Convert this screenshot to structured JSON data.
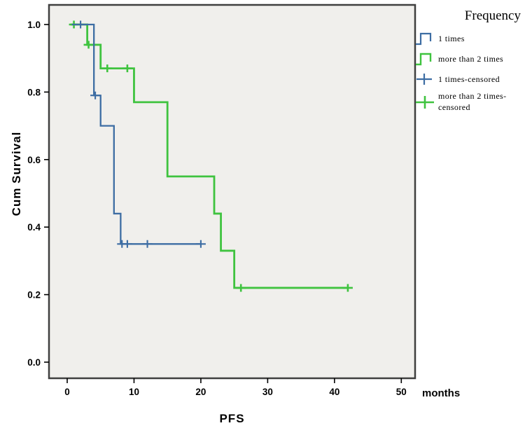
{
  "figure": {
    "background": "#ffffff",
    "plot_background": "#f0efec",
    "frame_color": "#3f3f3f"
  },
  "chart_data": {
    "type": "line",
    "subtype": "kaplan-meier-step-survival",
    "title": "",
    "xlabel": "PFS",
    "x_unit_label": "months",
    "ylabel": "Cum Survival",
    "xlim": [
      0,
      52
    ],
    "ylim": [
      0,
      1.04
    ],
    "x_ticks": [
      "0",
      "10",
      "20",
      "30",
      "40",
      "50"
    ],
    "y_ticks": [
      "0.0",
      "0.2",
      "0.4",
      "0.6",
      "0.8",
      "1.0"
    ],
    "grid": false,
    "legend": {
      "position": "right-outside",
      "title": "Frequency",
      "items": [
        {
          "label": "1 times",
          "symbol": "step-line",
          "color": "#3d6da3"
        },
        {
          "label": "more than 2 times",
          "symbol": "step-line",
          "color": "#3fc33f"
        },
        {
          "label": "1 times-censored",
          "symbol": "plus",
          "color": "#3d6da3"
        },
        {
          "label": "more than 2 times-censored",
          "symbol": "plus",
          "color": "#3fc33f"
        }
      ]
    },
    "series": [
      {
        "name": "more than 2 times",
        "color": "#3fc33f",
        "stroke_width": 2.8,
        "steps": [
          [
            0.5,
            1.0
          ],
          [
            3,
            1.0
          ],
          [
            3,
            0.94
          ],
          [
            5,
            0.94
          ],
          [
            5,
            0.87
          ],
          [
            10,
            0.87
          ],
          [
            10,
            0.77
          ],
          [
            15,
            0.77
          ],
          [
            15,
            0.55
          ],
          [
            22,
            0.55
          ],
          [
            22,
            0.44
          ],
          [
            23,
            0.44
          ],
          [
            23,
            0.33
          ],
          [
            25,
            0.33
          ],
          [
            25,
            0.22
          ],
          [
            42,
            0.22
          ]
        ],
        "censored": [
          [
            1,
            1.0
          ],
          [
            3.2,
            0.94
          ],
          [
            6,
            0.87
          ],
          [
            9,
            0.87
          ],
          [
            26,
            0.22
          ],
          [
            42,
            0.22
          ]
        ]
      },
      {
        "name": "1 times",
        "color": "#3d6da3",
        "stroke_width": 2.3,
        "steps": [
          [
            0.7,
            1.0
          ],
          [
            4,
            1.0
          ],
          [
            4,
            0.79
          ],
          [
            5,
            0.79
          ],
          [
            5,
            0.7
          ],
          [
            7,
            0.7
          ],
          [
            7,
            0.44
          ],
          [
            8,
            0.44
          ],
          [
            8,
            0.35
          ],
          [
            20,
            0.35
          ]
        ],
        "censored": [
          [
            2,
            1.0
          ],
          [
            4.2,
            0.79
          ],
          [
            8.2,
            0.35
          ],
          [
            9,
            0.35
          ],
          [
            12,
            0.35
          ],
          [
            20,
            0.35
          ]
        ]
      }
    ]
  }
}
